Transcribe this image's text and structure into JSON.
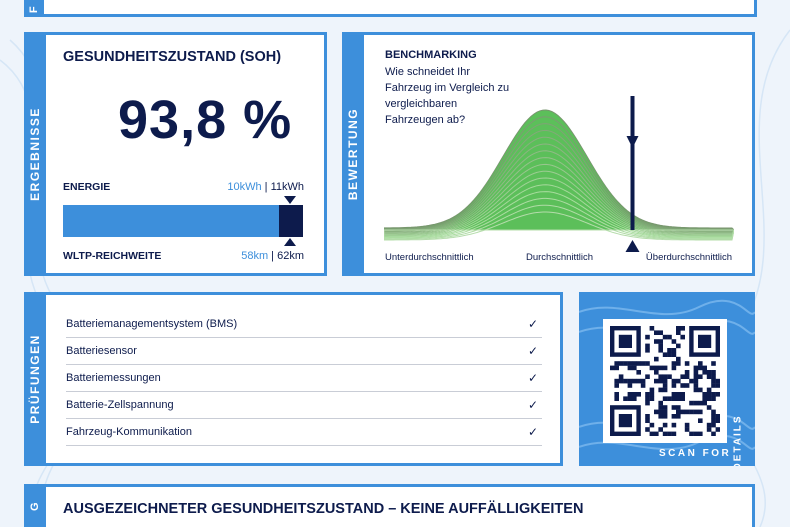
{
  "sections": {
    "top_tab": "F",
    "results_tab": "ERGEBNISSE",
    "rating_tab": "BEWERTUNG",
    "checks_tab": "PRÜFUNGEN",
    "bottom_tab": "G"
  },
  "soh": {
    "title": "GESUNDHEITSZUSTAND (SOH)",
    "value": "93,8 %",
    "energy_label": "ENERGIE",
    "energy_current": "10kWh",
    "energy_sep": " | ",
    "energy_total": "11kWh",
    "range_label": "WLTP-REICHWEITE",
    "range_current": "58km",
    "range_sep": " | ",
    "range_total": "62km",
    "bar_fill_fraction": 0.9,
    "accent": "#3d8fdb",
    "dark": "#0d1b4c"
  },
  "benchmark": {
    "title": "BENCHMARKING",
    "question_lines": [
      "Wie schneidet Ihr",
      "Fahrzeug im Vergleich zu",
      "vergleichbaren",
      "Fahrzeugen ab?"
    ],
    "label_low": "Unterdurchschnittlich",
    "label_mid": "Durchschnittlich",
    "label_high": "Überdurchschnittlich",
    "marker_position_fraction": 0.71,
    "curve_color": "#5cbf5a"
  },
  "checks": {
    "items": [
      "Batteriemanagementsystem (BMS)",
      "Batteriesensor",
      "Batteriemessungen",
      "Batterie-Zellspannung",
      "Fahrzeug-Kommunikation"
    ],
    "check_glyph": "✓"
  },
  "qr": {
    "caption": "SCAN FOR",
    "caption_vertical": "DETAILS"
  },
  "verdict": {
    "title": "AUSGEZEICHNETER GESUNDHEITSZUSTAND – KEINE AUFFÄLLIGKEITEN"
  }
}
